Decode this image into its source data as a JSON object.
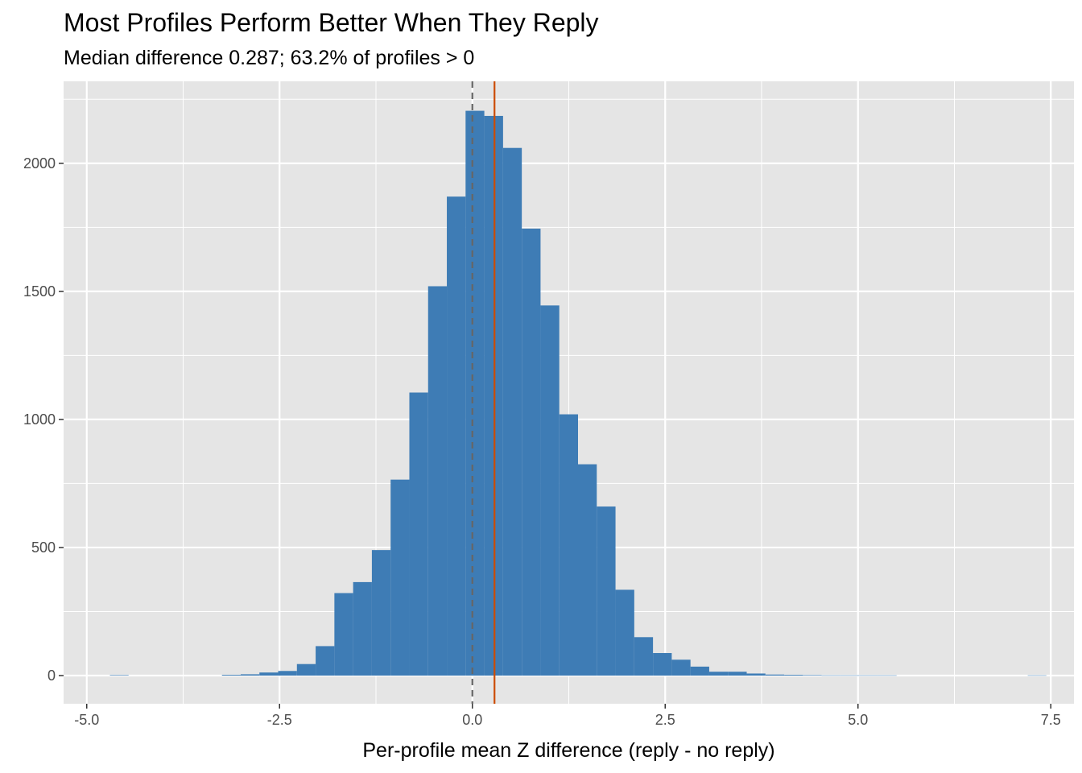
{
  "chart_data": {
    "type": "histogram",
    "title": "Most Profiles Perform Better When They Reply",
    "subtitle": "Median difference 0.287; 63.2% of profiles > 0",
    "xlabel": "Per-profile mean Z difference (reply - no reply)",
    "ylabel": "",
    "xlim": [
      -5.3,
      7.8
    ],
    "ylim": [
      -110,
      2320
    ],
    "x_ticks": [
      -5.0,
      -2.5,
      0.0,
      2.5,
      5.0,
      7.5
    ],
    "x_tick_labels": [
      "-5.0",
      "-2.5",
      "0.0",
      "2.5",
      "5.0",
      "7.5"
    ],
    "y_ticks": [
      0,
      500,
      1000,
      1500,
      2000
    ],
    "y_tick_labels": [
      "0",
      "500",
      "1000",
      "1500",
      "2000"
    ],
    "grid": true,
    "bin_width": 0.243,
    "bins": [
      {
        "x0": -4.7,
        "count": 2
      },
      {
        "x0": -3.247,
        "count": 3
      },
      {
        "x0": -3.004,
        "count": 5
      },
      {
        "x0": -2.761,
        "count": 12
      },
      {
        "x0": -2.518,
        "count": 18
      },
      {
        "x0": -2.275,
        "count": 45
      },
      {
        "x0": -2.032,
        "count": 115
      },
      {
        "x0": -1.789,
        "count": 322
      },
      {
        "x0": -1.546,
        "count": 365
      },
      {
        "x0": -1.303,
        "count": 490
      },
      {
        "x0": -1.06,
        "count": 765
      },
      {
        "x0": -0.817,
        "count": 1105
      },
      {
        "x0": -0.574,
        "count": 1520
      },
      {
        "x0": -0.331,
        "count": 1870
      },
      {
        "x0": -0.088,
        "count": 2205
      },
      {
        "x0": 0.155,
        "count": 2185
      },
      {
        "x0": 0.398,
        "count": 2060
      },
      {
        "x0": 0.641,
        "count": 1745
      },
      {
        "x0": 0.884,
        "count": 1445
      },
      {
        "x0": 1.127,
        "count": 1020
      },
      {
        "x0": 1.37,
        "count": 825
      },
      {
        "x0": 1.613,
        "count": 660
      },
      {
        "x0": 1.856,
        "count": 335
      },
      {
        "x0": 2.099,
        "count": 150
      },
      {
        "x0": 2.342,
        "count": 88
      },
      {
        "x0": 2.585,
        "count": 62
      },
      {
        "x0": 2.828,
        "count": 35
      },
      {
        "x0": 3.071,
        "count": 15
      },
      {
        "x0": 3.314,
        "count": 15
      },
      {
        "x0": 3.557,
        "count": 8
      },
      {
        "x0": 3.8,
        "count": 4
      },
      {
        "x0": 4.043,
        "count": 3
      },
      {
        "x0": 4.286,
        "count": 2
      },
      {
        "x0": 4.529,
        "count": 1
      },
      {
        "x0": 4.772,
        "count": 1
      },
      {
        "x0": 5.015,
        "count": 1
      },
      {
        "x0": 5.258,
        "count": 1
      },
      {
        "x0": 7.2,
        "count": 1
      }
    ],
    "reference_lines": [
      {
        "x": 0,
        "style": "dashed",
        "color": "#666666"
      },
      {
        "x": 0.287,
        "style": "solid",
        "color": "#CC4C02"
      }
    ],
    "colors": {
      "bar": "#3E7CB5",
      "panel": "#E5E5E5",
      "grid": "#FFFFFF",
      "text": "#000000",
      "tick_text": "#4D4D4D"
    }
  }
}
